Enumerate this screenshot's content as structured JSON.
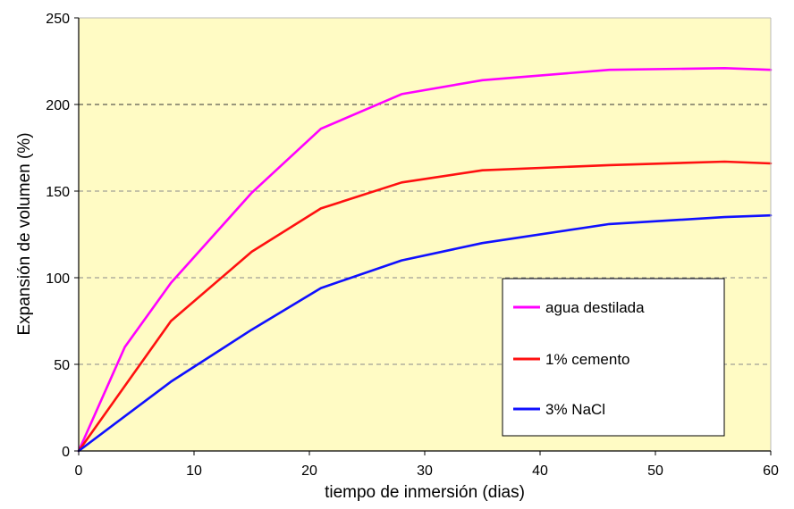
{
  "chart_data": {
    "type": "line",
    "title": "",
    "xlabel": "tiempo de inmersión (dias)",
    "ylabel": "Expansión de volumen (%)",
    "xlim": [
      0,
      60
    ],
    "ylim": [
      0,
      250
    ],
    "xticks": [
      0,
      10,
      20,
      30,
      40,
      50,
      60
    ],
    "yticks": [
      0,
      50,
      100,
      150,
      200,
      250
    ],
    "grid": "horizontal-dashed",
    "plot_background": "#FFFBC4",
    "legend_position": "bottom-right",
    "series": [
      {
        "name": "agua destilada",
        "color": "#FF00FF",
        "x": [
          0,
          4,
          8,
          15,
          21,
          28,
          35,
          46,
          56,
          60
        ],
        "y": [
          0,
          60,
          97,
          149,
          186,
          206,
          214,
          220,
          221,
          220
        ]
      },
      {
        "name": "1% cemento",
        "color": "#FF1010",
        "x": [
          0,
          8,
          15,
          21,
          28,
          35,
          46,
          56,
          60
        ],
        "y": [
          0,
          75,
          115,
          140,
          155,
          162,
          165,
          167,
          166
        ]
      },
      {
        "name": "3% NaCl",
        "color": "#1010FF",
        "x": [
          0,
          8,
          15,
          21,
          28,
          35,
          46,
          56,
          60
        ],
        "y": [
          0,
          40,
          70,
          94,
          110,
          120,
          131,
          135,
          136
        ]
      }
    ]
  }
}
